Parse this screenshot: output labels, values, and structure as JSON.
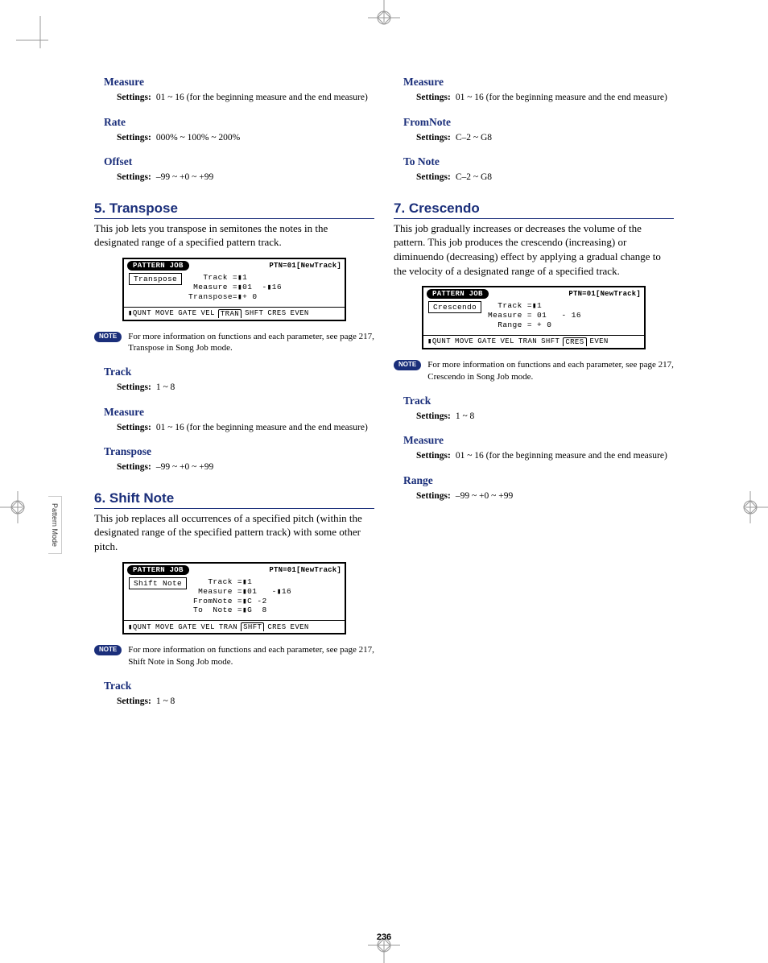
{
  "page_number": "236",
  "sidebar_tab": "Pattern Mode",
  "colors": {
    "heading": "#1a2e7a",
    "text": "#000000",
    "bg": "#ffffff",
    "cropmark": "#999999"
  },
  "left": {
    "pre": [
      {
        "heading": "Measure",
        "settings_label": "Settings:",
        "settings_value": "01 ~ 16 (for the beginning measure and the end measure)"
      },
      {
        "heading": "Rate",
        "settings_label": "Settings:",
        "settings_value": "000% ~ 100% ~ 200%"
      },
      {
        "heading": "Offset",
        "settings_label": "Settings:",
        "settings_value": "–99 ~ +0 ~ +99"
      }
    ],
    "section5": {
      "title": "5. Transpose",
      "desc": "This job lets you transpose in semitones the notes in the designated range of a specified pattern track.",
      "lcd": {
        "titlebar": "PATTERN JOB",
        "ptn": "PTN=01[NewTrack]",
        "jobname": "Transpose",
        "params": "   Track =▮1\n Measure =▮01  -▮16\nTranspose=▮+ 0",
        "tabs": [
          "▮QUNT",
          "MOVE",
          "GATE",
          "VEL",
          "TRAN",
          "SHFT",
          "CRES",
          "EVEN"
        ],
        "active_tab_index": 4
      },
      "note_badge": "NOTE",
      "note": "For more information on functions and each parameter, see page 217, Transpose in Song Job mode.",
      "params": [
        {
          "heading": "Track",
          "settings_label": "Settings:",
          "settings_value": "1 ~ 8"
        },
        {
          "heading": "Measure",
          "settings_label": "Settings:",
          "settings_value": "01 ~ 16 (for the beginning measure and the end measure)"
        },
        {
          "heading": "Transpose",
          "settings_label": "Settings:",
          "settings_value": "–99 ~ +0 ~ +99"
        }
      ]
    },
    "section6": {
      "title": "6. Shift Note",
      "desc": "This job replaces all occurrences of a specified pitch (within the designated range of the specified pattern track) with some other pitch.",
      "lcd": {
        "titlebar": "PATTERN JOB",
        "ptn": "PTN=01[NewTrack]",
        "jobname": "Shift Note",
        "params": "   Track =▮1\n Measure =▮01   -▮16\nFromNote =▮C -2\nTo  Note =▮G  8",
        "tabs": [
          "▮QUNT",
          "MOVE",
          "GATE",
          "VEL",
          "TRAN",
          "SHFT",
          "CRES",
          "EVEN"
        ],
        "active_tab_index": 5
      },
      "note_badge": "NOTE",
      "note": "For more information on functions and each parameter, see page 217, Shift Note in Song Job mode.",
      "params": [
        {
          "heading": "Track",
          "settings_label": "Settings:",
          "settings_value": "1 ~ 8"
        }
      ]
    }
  },
  "right": {
    "pre": [
      {
        "heading": "Measure",
        "settings_label": "Settings:",
        "settings_value": "01 ~ 16 (for the beginning measure and the end measure)"
      },
      {
        "heading": "FromNote",
        "settings_label": "Settings:",
        "settings_value": "C–2 ~ G8"
      },
      {
        "heading": "To Note",
        "settings_label": "Settings:",
        "settings_value": "C–2 ~ G8"
      }
    ],
    "section7": {
      "title": "7. Crescendo",
      "desc": "This job gradually increases or decreases the volume of the pattern. This job produces the crescendo (increasing) or diminuendo (decreasing) effect by applying a gradual change to the velocity of a designated range of a specified track.",
      "lcd": {
        "titlebar": "PATTERN JOB",
        "ptn": "PTN=01[NewTrack]",
        "jobname": "Crescendo",
        "params": "  Track =▮1\nMeasure = 01   - 16\n  Range = + 0",
        "tabs": [
          "▮QUNT",
          "MOVE",
          "GATE",
          "VEL",
          "TRAN",
          "SHFT",
          "CRES",
          "EVEN"
        ],
        "active_tab_index": 6
      },
      "note_badge": "NOTE",
      "note": "For more information on functions and each parameter, see page 217, Crescendo in Song Job mode.",
      "params": [
        {
          "heading": "Track",
          "settings_label": "Settings:",
          "settings_value": "1 ~ 8"
        },
        {
          "heading": "Measure",
          "settings_label": "Settings:",
          "settings_value": "01 ~ 16 (for the beginning measure and the end measure)"
        },
        {
          "heading": "Range",
          "settings_label": "Settings:",
          "settings_value": "–99 ~ +0 ~ +99"
        }
      ]
    }
  }
}
